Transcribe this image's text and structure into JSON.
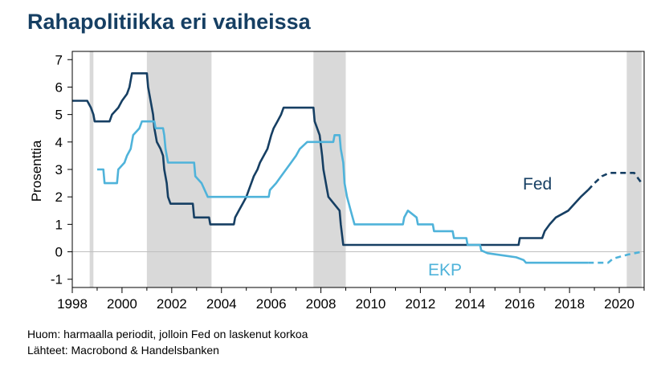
{
  "chart_data": {
    "type": "line",
    "title": "Rahapolitiikka eri vaiheissa",
    "ylabel": "Prosenttia",
    "xlim": [
      1998,
      2021
    ],
    "ylim": [
      -1.3,
      7.3
    ],
    "x_ticks": [
      "1998",
      "2000",
      "2002",
      "2004",
      "2006",
      "2008",
      "2010",
      "2012",
      "2014",
      "2016",
      "2018",
      "2020"
    ],
    "y_ticks": [
      "7",
      "6",
      "5",
      "4",
      "3",
      "2",
      "1",
      "0",
      "-1"
    ],
    "colors": {
      "fed": "#163f63",
      "ekp": "#4fb3da",
      "shade": "#d9d9d9"
    },
    "shaded_periods": [
      [
        1998.7,
        1998.85
      ],
      [
        2001.0,
        2003.6
      ],
      [
        2007.7,
        2009.0
      ],
      [
        2020.3,
        2020.9
      ]
    ],
    "series": [
      {
        "name": "Fed",
        "style": "solid",
        "points": [
          [
            1998.0,
            5.5
          ],
          [
            1998.6,
            5.5
          ],
          [
            1998.75,
            5.25
          ],
          [
            1998.85,
            5.0
          ],
          [
            1998.9,
            4.75
          ],
          [
            1999.5,
            4.75
          ],
          [
            1999.6,
            5.0
          ],
          [
            1999.85,
            5.25
          ],
          [
            2000.0,
            5.5
          ],
          [
            2000.2,
            5.75
          ],
          [
            2000.3,
            6.0
          ],
          [
            2000.4,
            6.5
          ],
          [
            2001.0,
            6.5
          ],
          [
            2001.05,
            6.0
          ],
          [
            2001.15,
            5.5
          ],
          [
            2001.25,
            5.0
          ],
          [
            2001.3,
            4.5
          ],
          [
            2001.4,
            4.0
          ],
          [
            2001.55,
            3.75
          ],
          [
            2001.65,
            3.5
          ],
          [
            2001.7,
            3.0
          ],
          [
            2001.8,
            2.5
          ],
          [
            2001.85,
            2.0
          ],
          [
            2001.95,
            1.75
          ],
          [
            2002.85,
            1.75
          ],
          [
            2002.9,
            1.25
          ],
          [
            2003.5,
            1.25
          ],
          [
            2003.55,
            1.0
          ],
          [
            2004.5,
            1.0
          ],
          [
            2004.55,
            1.25
          ],
          [
            2004.7,
            1.5
          ],
          [
            2004.85,
            1.75
          ],
          [
            2005.0,
            2.0
          ],
          [
            2005.1,
            2.25
          ],
          [
            2005.2,
            2.5
          ],
          [
            2005.3,
            2.75
          ],
          [
            2005.45,
            3.0
          ],
          [
            2005.55,
            3.25
          ],
          [
            2005.7,
            3.5
          ],
          [
            2005.85,
            3.75
          ],
          [
            2006.0,
            4.25
          ],
          [
            2006.1,
            4.5
          ],
          [
            2006.25,
            4.75
          ],
          [
            2006.4,
            5.0
          ],
          [
            2006.5,
            5.25
          ],
          [
            2007.7,
            5.25
          ],
          [
            2007.75,
            4.75
          ],
          [
            2007.85,
            4.5
          ],
          [
            2007.95,
            4.25
          ],
          [
            2008.05,
            3.5
          ],
          [
            2008.1,
            3.0
          ],
          [
            2008.25,
            2.25
          ],
          [
            2008.3,
            2.0
          ],
          [
            2008.75,
            1.5
          ],
          [
            2008.8,
            1.0
          ],
          [
            2008.9,
            0.25
          ],
          [
            2015.95,
            0.25
          ],
          [
            2016.0,
            0.5
          ],
          [
            2016.9,
            0.5
          ],
          [
            2017.0,
            0.75
          ],
          [
            2017.2,
            1.0
          ],
          [
            2017.45,
            1.25
          ],
          [
            2017.95,
            1.5
          ],
          [
            2018.2,
            1.75
          ],
          [
            2018.45,
            2.0
          ],
          [
            2018.75,
            2.25
          ]
        ]
      },
      {
        "name": "Fed",
        "style": "dashed",
        "points": [
          [
            2018.75,
            2.25
          ],
          [
            2019.0,
            2.5
          ],
          [
            2019.3,
            2.75
          ],
          [
            2019.6,
            2.875
          ],
          [
            2020.35,
            2.875
          ],
          [
            2020.6,
            2.875
          ],
          [
            2020.9,
            2.5
          ]
        ]
      },
      {
        "name": "EKP",
        "style": "solid",
        "points": [
          [
            1999.0,
            3.0
          ],
          [
            1999.25,
            3.0
          ],
          [
            1999.3,
            2.5
          ],
          [
            1999.8,
            2.5
          ],
          [
            1999.85,
            3.0
          ],
          [
            2000.1,
            3.25
          ],
          [
            2000.2,
            3.5
          ],
          [
            2000.35,
            3.75
          ],
          [
            2000.45,
            4.25
          ],
          [
            2000.7,
            4.5
          ],
          [
            2000.8,
            4.75
          ],
          [
            2001.3,
            4.75
          ],
          [
            2001.35,
            4.5
          ],
          [
            2001.65,
            4.5
          ],
          [
            2001.7,
            4.25
          ],
          [
            2001.75,
            3.75
          ],
          [
            2001.85,
            3.25
          ],
          [
            2002.9,
            3.25
          ],
          [
            2002.95,
            2.75
          ],
          [
            2003.2,
            2.5
          ],
          [
            2003.45,
            2.0
          ],
          [
            2005.9,
            2.0
          ],
          [
            2005.95,
            2.25
          ],
          [
            2006.2,
            2.5
          ],
          [
            2006.4,
            2.75
          ],
          [
            2006.6,
            3.0
          ],
          [
            2006.8,
            3.25
          ],
          [
            2007.0,
            3.5
          ],
          [
            2007.15,
            3.75
          ],
          [
            2007.45,
            4.0
          ],
          [
            2008.5,
            4.0
          ],
          [
            2008.55,
            4.25
          ],
          [
            2008.75,
            4.25
          ],
          [
            2008.8,
            3.75
          ],
          [
            2008.9,
            3.25
          ],
          [
            2008.95,
            2.5
          ],
          [
            2009.05,
            2.0
          ],
          [
            2009.2,
            1.5
          ],
          [
            2009.35,
            1.0
          ],
          [
            2011.3,
            1.0
          ],
          [
            2011.35,
            1.25
          ],
          [
            2011.5,
            1.5
          ],
          [
            2011.85,
            1.25
          ],
          [
            2011.9,
            1.0
          ],
          [
            2012.5,
            1.0
          ],
          [
            2012.55,
            0.75
          ],
          [
            2013.3,
            0.75
          ],
          [
            2013.35,
            0.5
          ],
          [
            2013.85,
            0.5
          ],
          [
            2013.9,
            0.25
          ],
          [
            2014.4,
            0.25
          ],
          [
            2014.45,
            0.05
          ],
          [
            2014.7,
            -0.05
          ],
          [
            2015.85,
            -0.2
          ],
          [
            2016.15,
            -0.3
          ],
          [
            2016.25,
            -0.4
          ],
          [
            2018.75,
            -0.4
          ]
        ]
      },
      {
        "name": "EKP",
        "style": "dashed",
        "points": [
          [
            2018.75,
            -0.4
          ],
          [
            2019.55,
            -0.4
          ],
          [
            2019.75,
            -0.25
          ],
          [
            2020.35,
            -0.1
          ],
          [
            2020.9,
            0.0
          ]
        ]
      }
    ],
    "labels": {
      "fed": "Fed",
      "ekp": "EKP"
    }
  },
  "notes": {
    "line1": "Huom: harmaalla periodit, jolloin Fed on laskenut korkoa",
    "line2": "Lähteet: Macrobond & Handelsbanken"
  }
}
